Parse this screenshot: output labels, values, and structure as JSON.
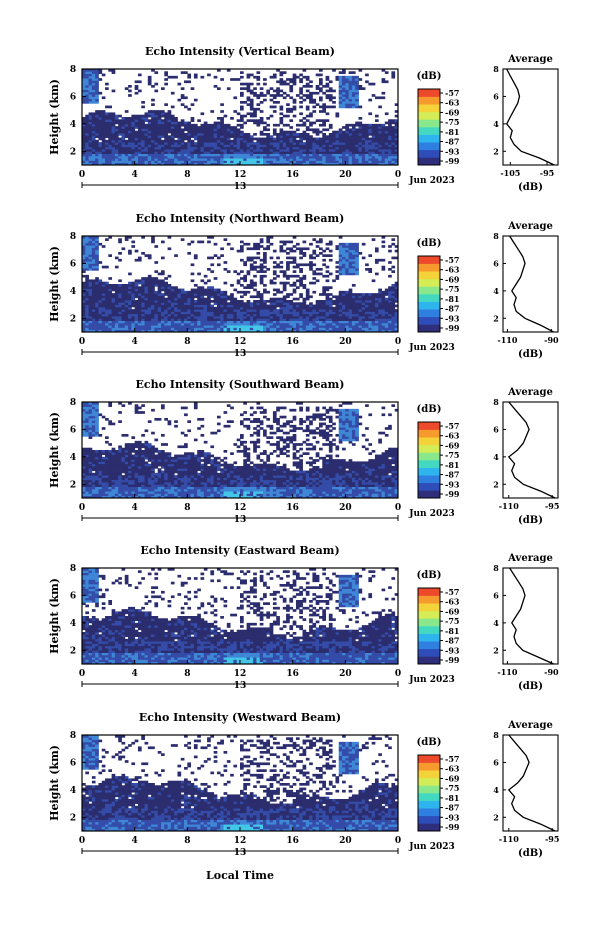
{
  "figure": {
    "xlabel": "Local Time",
    "date_label": "Jun 2023",
    "day_label": "13",
    "colorbar": {
      "unit": "(dB)",
      "tick_labels": [
        "-57",
        "-63",
        "-69",
        "-75",
        "-81",
        "-87",
        "-93",
        "-99"
      ],
      "colors": [
        "#2e2e7a",
        "#2f4db8",
        "#2f7fe0",
        "#2fb5ee",
        "#43d9c0",
        "#8ae88c",
        "#d4ec55",
        "#f4d23a",
        "#f79a2e",
        "#ec4a2a"
      ]
    },
    "heatmap_colors": {
      "background": "#ffffff",
      "dark": "#2b2d6e",
      "mid": "#344ca8",
      "light": "#3f86d6",
      "cyan": "#44c6e8"
    }
  },
  "chart_data": [
    {
      "type": "heatmap",
      "title": "Echo Intensity (Vertical Beam)",
      "ylabel": "Height (km)",
      "xlim": [
        0,
        24
      ],
      "x_ticks": [
        "0",
        "4",
        "8",
        "12",
        "16",
        "20",
        "0"
      ],
      "ylim": [
        1,
        8
      ],
      "y_ticks": [
        "2",
        "4",
        "6",
        "8"
      ],
      "clim": [
        -99,
        -57
      ],
      "profile": {
        "title": "Average",
        "xlabel": "(dB)",
        "x_ticks": [
          "-105",
          "-95"
        ],
        "xlim": [
          -107,
          -92
        ],
        "y_ticks": [
          "2",
          "4",
          "6",
          "8"
        ],
        "height": [
          1.0,
          1.5,
          2.0,
          2.5,
          3.0,
          3.5,
          4.0,
          4.5,
          5.0,
          5.5,
          6.0,
          6.5,
          7.0,
          7.5,
          8.0
        ],
        "values": [
          -93,
          -97,
          -102,
          -104,
          -105,
          -104.5,
          -106,
          -105,
          -104,
          -103,
          -102.5,
          -103,
          -104,
          -105,
          -106
        ]
      }
    },
    {
      "type": "heatmap",
      "title": "Echo Intensity (Northward Beam)",
      "ylabel": "Height (km)",
      "xlim": [
        0,
        24
      ],
      "x_ticks": [
        "0",
        "4",
        "8",
        "12",
        "16",
        "20",
        "0"
      ],
      "ylim": [
        1,
        8
      ],
      "y_ticks": [
        "2",
        "4",
        "6",
        "8"
      ],
      "clim": [
        -99,
        -57
      ],
      "profile": {
        "title": "Average",
        "xlabel": "(dB)",
        "x_ticks": [
          "-110",
          "-90"
        ],
        "xlim": [
          -112,
          -87
        ],
        "y_ticks": [
          "2",
          "4",
          "6",
          "8"
        ],
        "height": [
          1.0,
          1.5,
          2.0,
          2.5,
          3.0,
          3.5,
          4.0,
          4.5,
          5.0,
          5.5,
          6.0,
          6.5,
          7.0,
          7.5,
          8.0
        ],
        "values": [
          -89,
          -95,
          -102,
          -106,
          -107,
          -106,
          -108,
          -106,
          -104,
          -103,
          -102,
          -103,
          -105,
          -107,
          -109
        ]
      }
    },
    {
      "type": "heatmap",
      "title": "Echo Intensity (Southward Beam)",
      "ylabel": "Height (km)",
      "xlim": [
        0,
        24
      ],
      "x_ticks": [
        "0",
        "4",
        "8",
        "12",
        "16",
        "20",
        "0"
      ],
      "ylim": [
        1,
        8
      ],
      "y_ticks": [
        "2",
        "4",
        "6",
        "8"
      ],
      "clim": [
        -99,
        -57
      ],
      "profile": {
        "title": "Average",
        "xlabel": "(dB)",
        "x_ticks": [
          "-110",
          "-95"
        ],
        "xlim": [
          -112,
          -93
        ],
        "y_ticks": [
          "2",
          "4",
          "6",
          "8"
        ],
        "height": [
          1.0,
          1.5,
          2.0,
          2.5,
          3.0,
          3.5,
          4.0,
          4.5,
          5.0,
          5.5,
          6.0,
          6.5,
          7.0,
          7.5,
          8.0
        ],
        "values": [
          -94,
          -99,
          -105,
          -108,
          -109,
          -108,
          -110,
          -107,
          -105,
          -104,
          -103,
          -104,
          -106,
          -108,
          -110
        ]
      }
    },
    {
      "type": "heatmap",
      "title": "Echo Intensity (Eastward Beam)",
      "ylabel": "Height (km)",
      "xlim": [
        0,
        24
      ],
      "x_ticks": [
        "0",
        "4",
        "8",
        "12",
        "16",
        "20",
        "0"
      ],
      "ylim": [
        1,
        8
      ],
      "y_ticks": [
        "2",
        "4",
        "6",
        "8"
      ],
      "clim": [
        -99,
        -57
      ],
      "profile": {
        "title": "Average",
        "xlabel": "(dB)",
        "x_ticks": [
          "-110",
          "-90"
        ],
        "xlim": [
          -112,
          -87
        ],
        "y_ticks": [
          "2",
          "4",
          "6",
          "8"
        ],
        "height": [
          1.0,
          1.5,
          2.0,
          2.5,
          3.0,
          3.5,
          4.0,
          4.5,
          5.0,
          5.5,
          6.0,
          6.5,
          7.0,
          7.5,
          8.0
        ],
        "values": [
          -89,
          -96,
          -103,
          -106,
          -107,
          -106,
          -108,
          -106,
          -104,
          -103,
          -102,
          -103,
          -105,
          -107,
          -109
        ]
      }
    },
    {
      "type": "heatmap",
      "title": "Echo Intensity (Westward Beam)",
      "ylabel": "Height (km)",
      "xlim": [
        0,
        24
      ],
      "x_ticks": [
        "0",
        "4",
        "8",
        "12",
        "16",
        "20",
        "0"
      ],
      "ylim": [
        1,
        8
      ],
      "y_ticks": [
        "2",
        "4",
        "6",
        "8"
      ],
      "clim": [
        -99,
        -57
      ],
      "profile": {
        "title": "Average",
        "xlabel": "(dB)",
        "x_ticks": [
          "-110",
          "-95"
        ],
        "xlim": [
          -112,
          -93
        ],
        "y_ticks": [
          "2",
          "4",
          "6",
          "8"
        ],
        "height": [
          1.0,
          1.5,
          2.0,
          2.5,
          3.0,
          3.5,
          4.0,
          4.5,
          5.0,
          5.5,
          6.0,
          6.5,
          7.0,
          7.5,
          8.0
        ],
        "values": [
          -94,
          -99,
          -105,
          -108,
          -109,
          -108,
          -110,
          -107,
          -105,
          -104,
          -103,
          -104,
          -106,
          -108,
          -110
        ]
      }
    }
  ]
}
